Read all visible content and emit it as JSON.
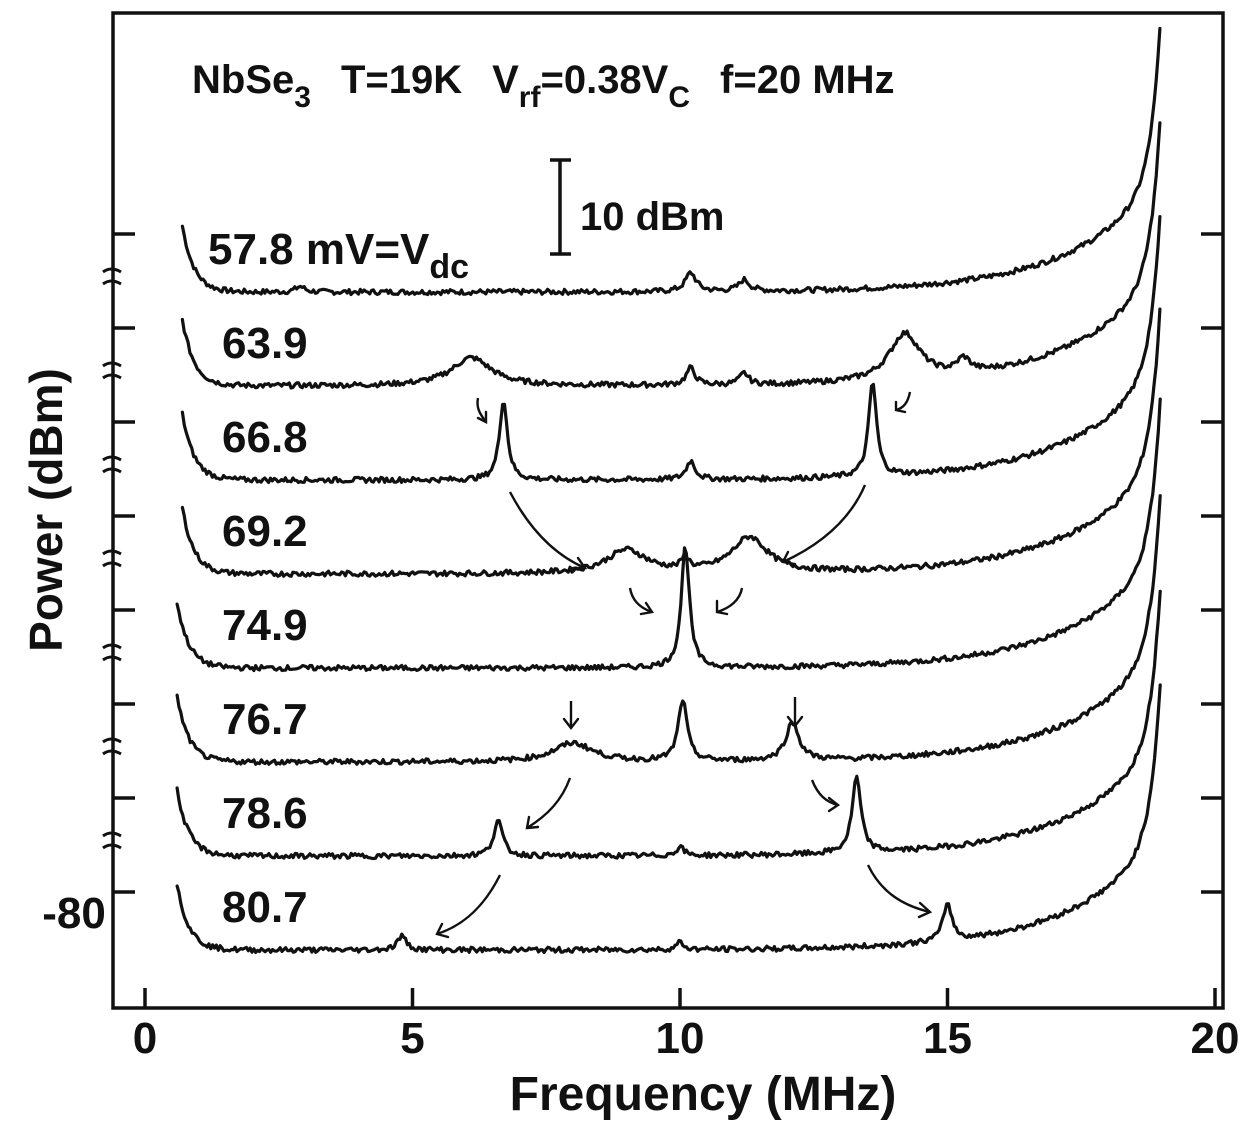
{
  "chart_data": {
    "type": "line",
    "title": "NbSe3   T=19K   Vrf=0.38VC   f=20 MHz",
    "title_parts": {
      "sample": "NbSe",
      "sample_sub": "3",
      "temperature": "T=19K",
      "vrf_main": "V",
      "vrf_sub": "rf",
      "vrf_value": "=0.38V",
      "vrf_value_sub": "C",
      "frequency": "f=20 MHz"
    },
    "xlabel": "Frequency (MHz)",
    "ylabel": "Power (dBm)",
    "xlim": [
      0,
      20
    ],
    "x_ticks": [
      0,
      5,
      10,
      15,
      20
    ],
    "y_tick_label": "-80",
    "scale_bar": "10 dBm",
    "scale_bar_dbm": 10,
    "trace_offset_dbm": 10,
    "first_label": {
      "main": "57.8 mV=V",
      "sub": "dc"
    },
    "series": [
      {
        "name": "57.8",
        "peaks": [
          {
            "f": 10.2,
            "a": 2.0,
            "w": 0.12
          },
          {
            "f": 11.2,
            "a": 1.2,
            "w": 0.12
          },
          {
            "f": 2.9,
            "a": 0.6,
            "w": 0.1
          }
        ]
      },
      {
        "name": "63.9",
        "peaks": [
          {
            "f": 6.1,
            "a": 3.0,
            "w": 0.45
          },
          {
            "f": 14.2,
            "a": 5.0,
            "w": 0.35
          },
          {
            "f": 10.2,
            "a": 1.8,
            "w": 0.1
          },
          {
            "f": 11.2,
            "a": 1.2,
            "w": 0.1
          },
          {
            "f": 15.3,
            "a": 1.5,
            "w": 0.15
          }
        ]
      },
      {
        "name": "66.8",
        "peaks": [
          {
            "f": 6.7,
            "a": 8.5,
            "w": 0.09
          },
          {
            "f": 13.6,
            "a": 10.0,
            "w": 0.09
          },
          {
            "f": 10.2,
            "a": 2.0,
            "w": 0.1
          }
        ]
      },
      {
        "name": "69.2",
        "peaks": [
          {
            "f": 9.0,
            "a": 2.5,
            "w": 0.45
          },
          {
            "f": 11.3,
            "a": 3.8,
            "w": 0.4
          },
          {
            "f": 10.1,
            "a": 1.3,
            "w": 0.08
          }
        ]
      },
      {
        "name": "74.9",
        "peaks": [
          {
            "f": 10.1,
            "a": 13.0,
            "w": 0.09
          }
        ]
      },
      {
        "name": "76.7",
        "peaks": [
          {
            "f": 8.0,
            "a": 2.0,
            "w": 0.45
          },
          {
            "f": 10.05,
            "a": 6.5,
            "w": 0.1
          },
          {
            "f": 12.1,
            "a": 4.0,
            "w": 0.15
          }
        ]
      },
      {
        "name": "78.6",
        "peaks": [
          {
            "f": 6.6,
            "a": 3.8,
            "w": 0.1
          },
          {
            "f": 13.3,
            "a": 8.0,
            "w": 0.1
          },
          {
            "f": 10.0,
            "a": 1.0,
            "w": 0.08
          }
        ]
      },
      {
        "name": "80.7",
        "peaks": [
          {
            "f": 4.8,
            "a": 1.5,
            "w": 0.1
          },
          {
            "f": 15.0,
            "a": 4.0,
            "w": 0.1
          },
          {
            "f": 10.0,
            "a": 0.8,
            "w": 0.08
          }
        ]
      }
    ]
  }
}
